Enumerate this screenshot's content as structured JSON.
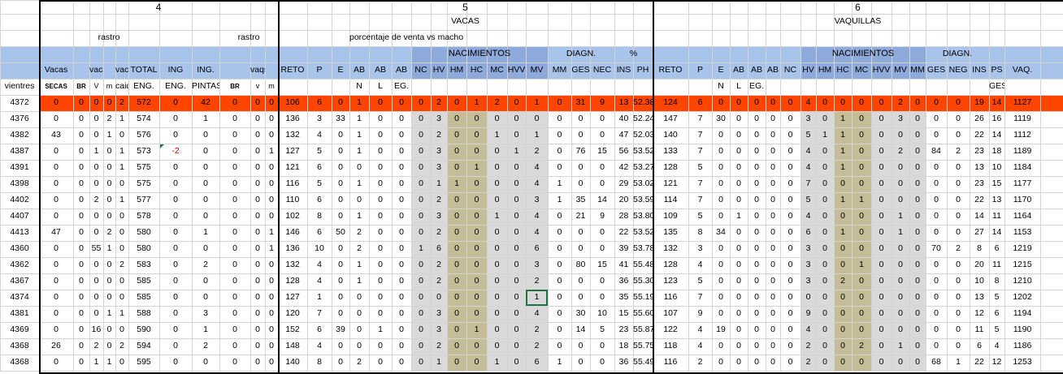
{
  "groups": [
    {
      "label": "4"
    },
    {
      "label": "5"
    },
    {
      "label": "6"
    }
  ],
  "headers": {
    "vacas_title": "VACAS",
    "vaquillas_title": "VAQUILLAS",
    "porcentaje": "porcentaje de venta vs macho",
    "rastro1": "rastro",
    "rastro2": "rastro",
    "nacimientos1": "NACIMIENTOS",
    "nacimientos2": "NACIMIENTOS",
    "diagn1": "DIAGN.",
    "diagn2": "DIAGN.",
    "pct": "%",
    "row4": [
      "Vacas",
      "",
      "vacas",
      "",
      "vacas",
      "TOTAL",
      "ING",
      "ING.",
      "",
      "vaqs",
      "",
      "RETO",
      "P",
      "E",
      "AB",
      "AB",
      "AB",
      "NC",
      "HV",
      "HM",
      "HC",
      "MC",
      "HVV",
      "MV",
      "MM",
      "GES",
      "NEC",
      "INS",
      "PH",
      "RETO",
      "P",
      "E",
      "AB",
      "AB",
      "AB",
      "NC",
      "HV",
      "HM",
      "HC",
      "MC",
      "HVV",
      "MV",
      "MM",
      "GES",
      "NEG",
      "INS",
      "PS",
      "VAQ."
    ],
    "row5": [
      "vientres",
      "SECAS",
      "BR",
      "V",
      "m",
      "caidas",
      "ENG.",
      "ENG.",
      "PINTAS",
      "BR",
      "v",
      "m",
      "",
      "",
      "",
      "N",
      "L",
      "EG.",
      "",
      "",
      "",
      "",
      "",
      "",
      "",
      "",
      "",
      "",
      "",
      "",
      "",
      "",
      "N",
      "L",
      "EG.",
      "",
      "",
      "",
      "",
      "",
      "",
      "",
      "",
      "",
      "",
      "",
      "",
      "GEST."
    ]
  },
  "rows": [
    [
      "4372",
      "0",
      "0",
      "0",
      "0",
      "2",
      "572",
      "0",
      "42",
      "0",
      "0",
      "0",
      "106",
      "6",
      "0",
      "1",
      "0",
      "0",
      "0",
      "2",
      "0",
      "1",
      "2",
      "0",
      "1",
      "0",
      "31",
      "9",
      "13",
      "52.38",
      "124",
      "6",
      "0",
      "0",
      "0",
      "0",
      "0",
      "4",
      "0",
      "0",
      "0",
      "0",
      "2",
      "0",
      "0",
      "0",
      "19",
      "14",
      "1127"
    ],
    [
      "4376",
      "0",
      "0",
      "0",
      "2",
      "1",
      "574",
      "0",
      "1",
      "0",
      "0",
      "0",
      "136",
      "3",
      "33",
      "1",
      "0",
      "0",
      "0",
      "3",
      "0",
      "0",
      "0",
      "0",
      "0",
      "0",
      "0",
      "0",
      "40",
      "52.24",
      "147",
      "7",
      "30",
      "0",
      "0",
      "0",
      "0",
      "3",
      "0",
      "1",
      "0",
      "0",
      "3",
      "0",
      "0",
      "0",
      "26",
      "16",
      "1119"
    ],
    [
      "4382",
      "43",
      "0",
      "0",
      "1",
      "0",
      "576",
      "0",
      "0",
      "0",
      "0",
      "0",
      "132",
      "4",
      "0",
      "1",
      "0",
      "0",
      "0",
      "2",
      "0",
      "0",
      "1",
      "0",
      "1",
      "0",
      "0",
      "0",
      "47",
      "52.03",
      "140",
      "7",
      "0",
      "0",
      "0",
      "0",
      "0",
      "5",
      "1",
      "1",
      "0",
      "0",
      "0",
      "0",
      "0",
      "0",
      "22",
      "14",
      "1112"
    ],
    [
      "4387",
      "0",
      "0",
      "1",
      "0",
      "1",
      "573",
      "-2",
      "0",
      "0",
      "0",
      "1",
      "127",
      "5",
      "0",
      "1",
      "0",
      "0",
      "0",
      "3",
      "0",
      "0",
      "0",
      "1",
      "2",
      "0",
      "76",
      "15",
      "56",
      "53.52",
      "133",
      "7",
      "0",
      "0",
      "0",
      "0",
      "0",
      "4",
      "0",
      "1",
      "0",
      "0",
      "2",
      "0",
      "84",
      "2",
      "23",
      "18",
      "1189"
    ],
    [
      "4391",
      "0",
      "0",
      "0",
      "0",
      "1",
      "575",
      "0",
      "0",
      "0",
      "0",
      "0",
      "121",
      "6",
      "0",
      "0",
      "0",
      "0",
      "0",
      "3",
      "0",
      "1",
      "0",
      "0",
      "4",
      "0",
      "0",
      "0",
      "42",
      "53.27",
      "128",
      "5",
      "0",
      "0",
      "0",
      "0",
      "0",
      "4",
      "0",
      "1",
      "0",
      "0",
      "0",
      "0",
      "0",
      "0",
      "13",
      "10",
      "1184"
    ],
    [
      "4398",
      "0",
      "0",
      "0",
      "0",
      "0",
      "575",
      "0",
      "0",
      "0",
      "0",
      "0",
      "116",
      "5",
      "0",
      "1",
      "0",
      "0",
      "0",
      "1",
      "1",
      "0",
      "0",
      "0",
      "4",
      "1",
      "0",
      "0",
      "29",
      "53.02",
      "121",
      "7",
      "0",
      "0",
      "0",
      "0",
      "0",
      "7",
      "0",
      "0",
      "0",
      "0",
      "0",
      "0",
      "0",
      "0",
      "23",
      "15",
      "1177"
    ],
    [
      "4402",
      "0",
      "0",
      "2",
      "0",
      "1",
      "577",
      "0",
      "0",
      "0",
      "0",
      "0",
      "110",
      "6",
      "0",
      "0",
      "0",
      "0",
      "0",
      "2",
      "0",
      "0",
      "0",
      "0",
      "3",
      "1",
      "35",
      "14",
      "20",
      "53.59",
      "114",
      "7",
      "0",
      "0",
      "0",
      "0",
      "0",
      "5",
      "0",
      "1",
      "1",
      "0",
      "0",
      "0",
      "0",
      "0",
      "22",
      "13",
      "1170"
    ],
    [
      "4407",
      "0",
      "0",
      "0",
      "0",
      "0",
      "578",
      "0",
      "0",
      "0",
      "0",
      "0",
      "102",
      "8",
      "0",
      "1",
      "0",
      "0",
      "0",
      "3",
      "0",
      "0",
      "1",
      "0",
      "4",
      "0",
      "21",
      "9",
      "28",
      "53.80",
      "109",
      "5",
      "0",
      "1",
      "0",
      "0",
      "0",
      "4",
      "0",
      "0",
      "0",
      "0",
      "1",
      "0",
      "0",
      "0",
      "14",
      "11",
      "1164"
    ],
    [
      "4413",
      "47",
      "0",
      "0",
      "2",
      "0",
      "580",
      "0",
      "1",
      "0",
      "0",
      "1",
      "146",
      "6",
      "50",
      "2",
      "0",
      "0",
      "0",
      "2",
      "0",
      "0",
      "0",
      "0",
      "4",
      "0",
      "0",
      "0",
      "22",
      "53.52",
      "135",
      "8",
      "34",
      "0",
      "0",
      "0",
      "0",
      "6",
      "0",
      "1",
      "0",
      "0",
      "1",
      "0",
      "0",
      "0",
      "27",
      "14",
      "1153"
    ],
    [
      "4360",
      "0",
      "0",
      "55",
      "1",
      "0",
      "580",
      "0",
      "0",
      "0",
      "0",
      "1",
      "136",
      "10",
      "0",
      "2",
      "0",
      "0",
      "1",
      "6",
      "0",
      "0",
      "0",
      "0",
      "6",
      "0",
      "0",
      "0",
      "39",
      "53.78",
      "132",
      "3",
      "0",
      "0",
      "0",
      "0",
      "0",
      "3",
      "0",
      "0",
      "0",
      "0",
      "0",
      "0",
      "70",
      "2",
      "8",
      "6",
      "1219"
    ],
    [
      "4362",
      "0",
      "0",
      "0",
      "0",
      "2",
      "583",
      "0",
      "2",
      "0",
      "0",
      "0",
      "132",
      "4",
      "0",
      "1",
      "0",
      "0",
      "0",
      "2",
      "0",
      "0",
      "0",
      "0",
      "3",
      "0",
      "80",
      "15",
      "41",
      "55.48",
      "128",
      "4",
      "0",
      "0",
      "0",
      "0",
      "0",
      "3",
      "0",
      "0",
      "1",
      "0",
      "0",
      "0",
      "0",
      "0",
      "20",
      "11",
      "1215"
    ],
    [
      "4367",
      "0",
      "0",
      "0",
      "0",
      "0",
      "585",
      "0",
      "0",
      "0",
      "0",
      "0",
      "128",
      "4",
      "0",
      "1",
      "0",
      "0",
      "0",
      "2",
      "0",
      "0",
      "0",
      "0",
      "2",
      "0",
      "0",
      "0",
      "36",
      "55.30",
      "123",
      "5",
      "0",
      "0",
      "0",
      "0",
      "0",
      "3",
      "0",
      "2",
      "0",
      "0",
      "0",
      "0",
      "0",
      "0",
      "10",
      "8",
      "1210"
    ],
    [
      "4374",
      "0",
      "0",
      "0",
      "0",
      "0",
      "585",
      "0",
      "0",
      "0",
      "0",
      "0",
      "127",
      "1",
      "0",
      "0",
      "0",
      "0",
      "0",
      "0",
      "0",
      "0",
      "0",
      "0",
      "1",
      "0",
      "0",
      "0",
      "35",
      "55.19",
      "116",
      "7",
      "0",
      "0",
      "0",
      "0",
      "0",
      "0",
      "0",
      "0",
      "0",
      "0",
      "0",
      "0",
      "0",
      "0",
      "13",
      "5",
      "1202"
    ],
    [
      "4381",
      "0",
      "0",
      "0",
      "1",
      "1",
      "588",
      "0",
      "3",
      "0",
      "0",
      "0",
      "120",
      "7",
      "0",
      "0",
      "0",
      "0",
      "0",
      "3",
      "0",
      "0",
      "0",
      "0",
      "4",
      "0",
      "30",
      "10",
      "15",
      "55.60",
      "107",
      "9",
      "0",
      "0",
      "0",
      "0",
      "0",
      "9",
      "0",
      "0",
      "0",
      "0",
      "0",
      "0",
      "0",
      "0",
      "12",
      "6",
      "1194"
    ],
    [
      "4369",
      "0",
      "0",
      "16",
      "0",
      "0",
      "590",
      "0",
      "1",
      "0",
      "0",
      "0",
      "152",
      "6",
      "39",
      "0",
      "1",
      "0",
      "0",
      "3",
      "0",
      "1",
      "0",
      "0",
      "2",
      "0",
      "14",
      "5",
      "23",
      "55.87",
      "122",
      "4",
      "19",
      "0",
      "0",
      "0",
      "0",
      "4",
      "0",
      "0",
      "0",
      "0",
      "0",
      "0",
      "0",
      "0",
      "11",
      "5",
      "1190"
    ],
    [
      "4368",
      "26",
      "0",
      "2",
      "0",
      "2",
      "594",
      "0",
      "2",
      "0",
      "0",
      "0",
      "148",
      "4",
      "0",
      "0",
      "0",
      "0",
      "0",
      "2",
      "0",
      "0",
      "0",
      "0",
      "2",
      "0",
      "0",
      "0",
      "18",
      "55.75",
      "118",
      "4",
      "0",
      "0",
      "0",
      "0",
      "0",
      "2",
      "0",
      "0",
      "2",
      "0",
      "1",
      "0",
      "0",
      "0",
      "6",
      "4",
      "1186"
    ],
    [
      "4368",
      "0",
      "0",
      "1",
      "1",
      "0",
      "595",
      "0",
      "0",
      "0",
      "0",
      "0",
      "140",
      "8",
      "0",
      "2",
      "0",
      "0",
      "0",
      "1",
      "0",
      "0",
      "1",
      "0",
      "6",
      "1",
      "0",
      "0",
      "36",
      "55.49",
      "116",
      "2",
      "0",
      "0",
      "0",
      "0",
      "0",
      "2",
      "0",
      "0",
      "0",
      "0",
      "0",
      "0",
      "68",
      "1",
      "22",
      "12",
      "1253"
    ]
  ]
}
